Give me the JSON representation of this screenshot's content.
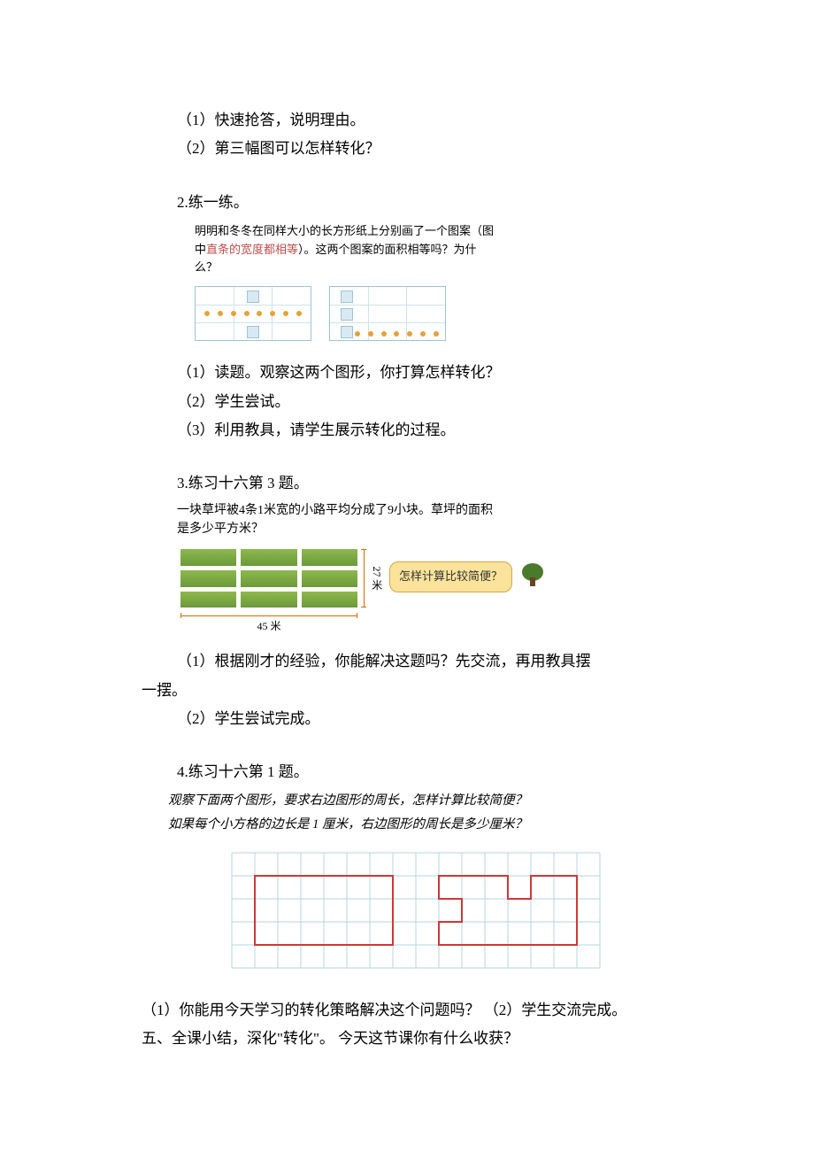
{
  "q1_1": "（1）快速抢答，说明理由。",
  "q1_2": "（2）第三幅图可以怎样转化？",
  "ex2_title": "2.练一练。",
  "ex2_desc_pre": "明明和冬冬在同样大小的长方形纸上分别画了一个图案（图中",
  "ex2_desc_red": "直条的宽度都相等",
  "ex2_desc_post": "）。这两个图案的面积相等吗？为什么？",
  "ex2_q1": "（1）读题。观察这两个图形，你打算怎样转化？",
  "ex2_q2": "（2）学生尝试。",
  "ex2_q3": "（3）利用教具，请学生展示转化的过程。",
  "ex3_title": "3.练习十六第 3 题。",
  "ex3_desc": "一块草坪被4条1米宽的小路平均分成了9小块。草坪的面积是多少平方米？",
  "ex3_width": "45 米",
  "ex3_height": "27 米",
  "ex3_bubble": "怎样计算比较简便？",
  "ex3_q1": "（1）根据刚才的经验，你能解决这题吗？先交流，再用教具摆",
  "ex3_q1b": "一摆。",
  "ex3_q2": "（2）学生尝试完成。",
  "ex4_title": "4.练习十六第 1 题。",
  "ex4_desc1": "观察下面两个图形，要求右边图形的周长，怎样计算比较简便？",
  "ex4_desc2": "如果每个小方格的边长是 1 厘米，右边图形的周长是多少厘米？",
  "final_q1": "（1）你能用今天学习的转化策略解决这个问题吗？ （2）学生交流完成。",
  "final_summary": "五、全课小结，深化\"转化\"。  今天这节课你有什么收获？",
  "colors": {
    "text": "#000000",
    "red_text": "#c0504d",
    "sky_border": "#9ec3d6",
    "sky_fill": "#d9e9f2",
    "sky_light": "#cfe2ec",
    "orange_dot": "#e5a23a",
    "lawn_top": "#8fb84e",
    "lawn_bottom": "#6a9a38",
    "bracket": "#d46a00",
    "bubble_fill": "#fbe39b",
    "bubble_border": "#d9a441",
    "tree_crown": "#4a7a2c",
    "tree_trunk": "#6b4423",
    "grid_line": "#b3d4e0",
    "shape_line": "#cf3838"
  },
  "ex4_grid": {
    "cols": 16,
    "rows": 5,
    "cell": 26,
    "left_shape": [
      [
        1,
        1
      ],
      [
        7,
        1
      ],
      [
        7,
        4
      ],
      [
        1,
        4
      ],
      [
        1,
        1
      ]
    ],
    "right_shape": [
      [
        9,
        3
      ],
      [
        9,
        1
      ],
      [
        12,
        1
      ],
      [
        12,
        2
      ],
      [
        14,
        2
      ],
      [
        14,
        1
      ],
      [
        15,
        1
      ],
      [
        15,
        4
      ],
      [
        9,
        4
      ],
      [
        9,
        3
      ],
      [
        11,
        3
      ],
      [
        11,
        2
      ],
      [
        12,
        2
      ]
    ]
  }
}
